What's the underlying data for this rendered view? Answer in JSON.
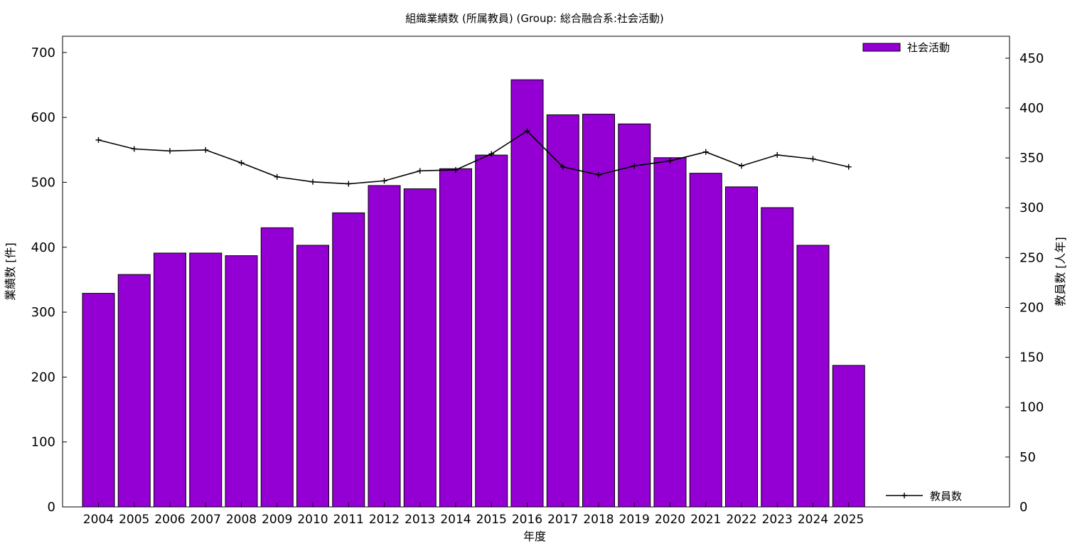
{
  "chart_data": {
    "type": "bar",
    "title": "組織業績数 (所属教員) (Group: 総合融合系:社会活動)",
    "xlabel": "年度",
    "ylabel": "業績数 [件]",
    "y2label": "教員数 [人年]",
    "categories": [
      "2004",
      "2005",
      "2006",
      "2007",
      "2008",
      "2009",
      "2010",
      "2011",
      "2012",
      "2013",
      "2014",
      "2015",
      "2016",
      "2017",
      "2018",
      "2019",
      "2020",
      "2021",
      "2022",
      "2023",
      "2024",
      "2025"
    ],
    "ylim": [
      0,
      725
    ],
    "yticks": [
      0,
      100,
      200,
      300,
      400,
      500,
      600,
      700
    ],
    "y2lim": [
      0,
      472
    ],
    "y2ticks": [
      0,
      50,
      100,
      150,
      200,
      250,
      300,
      350,
      400,
      450
    ],
    "series": [
      {
        "name": "社会活動",
        "type": "bar",
        "axis": "left",
        "color": "#9400d3",
        "values": [
          329,
          358,
          391,
          391,
          387,
          430,
          403,
          453,
          495,
          490,
          521,
          542,
          658,
          604,
          605,
          590,
          538,
          514,
          493,
          461,
          403,
          218
        ]
      },
      {
        "name": "教員数",
        "type": "line",
        "axis": "right",
        "color": "#000000",
        "values": [
          368,
          359,
          357,
          358,
          345,
          331,
          326,
          324,
          327,
          337,
          338,
          354,
          377,
          341,
          333,
          342,
          347,
          356,
          342,
          353,
          349,
          341
        ]
      }
    ],
    "legend": [
      "top-right",
      "bottom-right"
    ],
    "grid": false
  }
}
